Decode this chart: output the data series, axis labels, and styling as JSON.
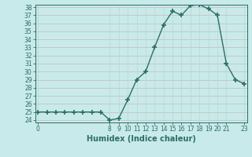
{
  "x": [
    0,
    1,
    2,
    3,
    4,
    5,
    6,
    7,
    8,
    9,
    10,
    11,
    12,
    13,
    14,
    15,
    16,
    17,
    18,
    19,
    20,
    21,
    22,
    23
  ],
  "y": [
    25,
    25,
    25,
    25,
    25,
    25,
    25,
    25,
    24,
    24.2,
    26.5,
    29,
    30,
    33,
    35.8,
    37.5,
    37,
    38.2,
    38.3,
    37.8,
    37,
    31,
    29,
    28.5
  ],
  "ylim_min": 24,
  "ylim_max": 38,
  "xlim_min": 0,
  "xlim_max": 23,
  "yticks": [
    24,
    25,
    26,
    27,
    28,
    29,
    30,
    31,
    32,
    33,
    34,
    35,
    36,
    37,
    38
  ],
  "xticks": [
    0,
    8,
    9,
    10,
    11,
    12,
    13,
    14,
    15,
    16,
    17,
    18,
    19,
    20,
    21,
    23
  ],
  "xlabel": "Humidex (Indice chaleur)",
  "line_color": "#2d6e63",
  "bg_color": "#c8eaea",
  "grid_color_h": "#b8d8d0",
  "grid_color_v": "#c8b8b8",
  "marker": "+",
  "markersize": 4,
  "markeredgewidth": 1.2,
  "linewidth": 1.0,
  "tick_fontsize": 5.5,
  "xlabel_fontsize": 7.0
}
